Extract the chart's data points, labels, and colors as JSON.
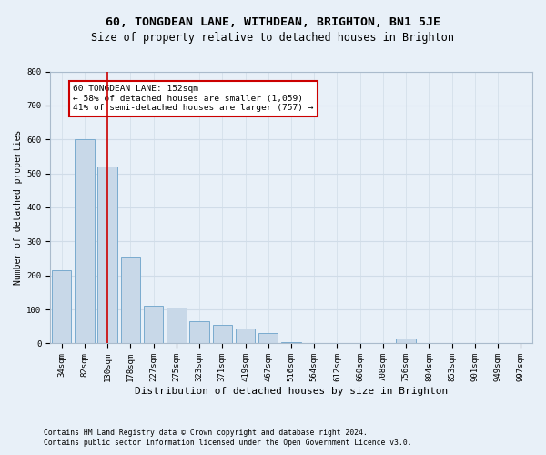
{
  "title": "60, TONGDEAN LANE, WITHDEAN, BRIGHTON, BN1 5JE",
  "subtitle": "Size of property relative to detached houses in Brighton",
  "xlabel": "Distribution of detached houses by size in Brighton",
  "ylabel": "Number of detached properties",
  "footnote1": "Contains HM Land Registry data © Crown copyright and database right 2024.",
  "footnote2": "Contains public sector information licensed under the Open Government Licence v3.0.",
  "categories": [
    "34sqm",
    "82sqm",
    "130sqm",
    "178sqm",
    "227sqm",
    "275sqm",
    "323sqm",
    "371sqm",
    "419sqm",
    "467sqm",
    "516sqm",
    "564sqm",
    "612sqm",
    "660sqm",
    "708sqm",
    "756sqm",
    "804sqm",
    "853sqm",
    "901sqm",
    "949sqm",
    "997sqm"
  ],
  "values": [
    215,
    600,
    520,
    255,
    110,
    105,
    65,
    55,
    45,
    30,
    5,
    0,
    0,
    0,
    0,
    15,
    0,
    0,
    0,
    0,
    0
  ],
  "bar_color": "#c8d8e8",
  "bar_edge_color": "#7aabcf",
  "red_line_index": 2,
  "red_line_color": "#cc0000",
  "ylim": [
    0,
    800
  ],
  "yticks": [
    0,
    100,
    200,
    300,
    400,
    500,
    600,
    700,
    800
  ],
  "annotation_text": "60 TONGDEAN LANE: 152sqm\n← 58% of detached houses are smaller (1,059)\n41% of semi-detached houses are larger (757) →",
  "annotation_box_color": "#ffffff",
  "annotation_box_edge_color": "#cc0000",
  "grid_color": "#d0dce8",
  "background_color": "#e8f0f8",
  "ax_background": "#e8f0f8",
  "title_fontsize": 9.5,
  "subtitle_fontsize": 8.5,
  "tick_fontsize": 6.5,
  "ylabel_fontsize": 7,
  "xlabel_fontsize": 8,
  "annot_fontsize": 6.8,
  "footnote_fontsize": 5.8
}
